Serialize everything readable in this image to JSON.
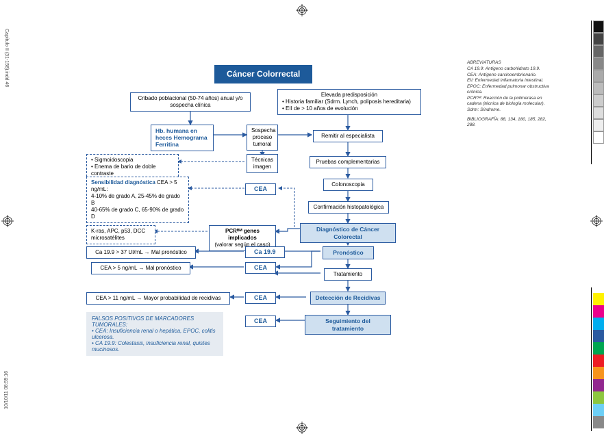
{
  "meta": {
    "file_label": "Capítulo II (31-158).indd   46",
    "timestamp": "10/10/11   08:59:16"
  },
  "title": "Cáncer Colorrectal",
  "abbr": {
    "heading": "ABREVIATURAS",
    "ca199": "CA 19.9: Antígeno carbohidrato 19.9.",
    "cea": "CEA: Antígeno carcinoembrionario.",
    "eii": "EII: Enfermedad inflamatoria intestinal.",
    "epoc": "EPOC: Enfermedad pulmonar obstructiva crónica.",
    "pcr": "PCRᴮᴹ: Reacción de la polimerasa en cadena (técnica de biología molecular).",
    "sdrm": "Sdrm: Síndrome.",
    "biblio": "BIBLIOGRAFÍA: 88, 134, 180, 185, 282, 288."
  },
  "nodes": {
    "cribado": "Cribado poblacional (50-74 años) anual y/o sospecha  clínica",
    "predispos_t": "Elevada predisposición",
    "predispos_b1": "• Historia familiar (Sdrm. Lynch, poliposis hereditaria)",
    "predispos_b2": "• EII de > 10 años de evolución",
    "hb": "Hb. humana en heces Hemograma Ferritina",
    "sospecha": "Sospecha proceso tumoral",
    "remitir": "Remitir al especialista",
    "tecnicas": "Técnicas imagen",
    "pruebas": "Pruebas complementarias",
    "sigmo1": "• Sigmoidoscopia",
    "sigmo2": "• Enema de bario de doble contraste",
    "sens_t": "Sensibilidad diagnóstica",
    "sens_v": " CEA > 5 ng/mL:",
    "sens_l2": "4-10% de grado A, 25-45% de grado B",
    "sens_l3": "40-65% de grado C, 65-90% de grado D",
    "cea": "CEA",
    "colono": "Colonoscopia",
    "confirm": "Confirmación histopatológica",
    "diag": "Diagnóstico de Cáncer Colorectal",
    "pcr1": "PCRᴮᴹ genes implicados",
    "pcr2": "(valorar según el caso)",
    "kras": "K-ras, APC, p53, DCC microsatélites",
    "ca199_prog": "Ca 19.9 > 37 UI/mL  →  Mal pronóstico",
    "ca199_lbl": "Ca 19.9",
    "cea_prog": "CEA > 5 ng/mL  →  Mal pronóstico",
    "pronostico": "Pronóstico",
    "tratamiento": "Tratamiento",
    "cea_recid": "CEA > 11 ng/mL  →  Mayor probabilidad de recidivas",
    "deteccion": "Detección de Recidivas",
    "seguimiento": "Seguimiento del tratamiento",
    "fp_t": "FALSOS POSITIVOS DE MARCADORES TUMORALES:",
    "fp_1": "• CEA: Insuficiencia renal o hepática, EPOC, colitis ulcerosa.",
    "fp_2": "• CA 19.9: Colestasis, insuficiencia renal, quistes mucinosos."
  },
  "colors": {
    "blue": "#1d5a9a",
    "light": "#cfe0f0",
    "arrow": "#2a5aa0",
    "grays": [
      "#111",
      "#444",
      "#666",
      "#888",
      "#aaa",
      "#bbb",
      "#ccc",
      "#ddd",
      "#eee",
      "#fff"
    ],
    "hues": [
      "#fff200",
      "#ec008c",
      "#00aeef",
      "#2a5aa0",
      "#00a651",
      "#ed1c24",
      "#f7941d",
      "#92278f",
      "#8dc63f",
      "#6dcff6",
      "#898989"
    ]
  }
}
